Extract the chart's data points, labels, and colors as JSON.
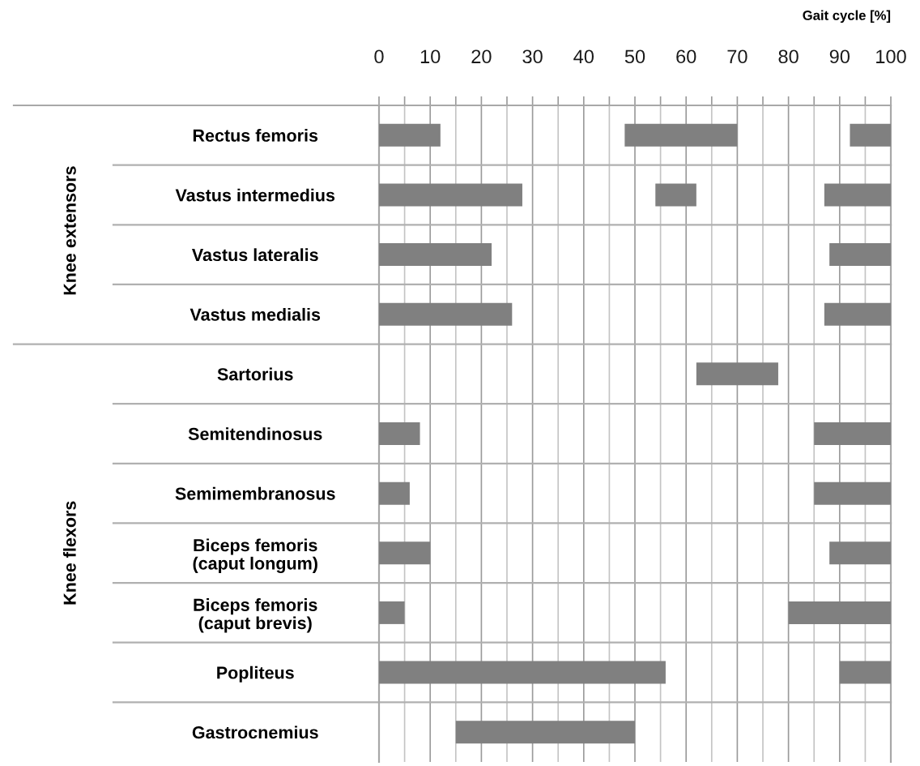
{
  "chart_data": {
    "type": "bar",
    "orientation": "horizontal",
    "xlabel": "Gait cycle [%]",
    "categories": [
      "Rectus femoris",
      "Vastus intermedius",
      "Vastus lateralis",
      "Vastus medialis",
      "Sartorius",
      "Semitendinosus",
      "Semimembranosus",
      "Biceps femoris\n(caput longum)",
      "Biceps femoris\n(caput brevis)",
      "Popliteus",
      "Gastrocnemius"
    ],
    "series": [
      {
        "color": "#808080",
        "base": [
          0,
          0,
          0,
          0,
          null,
          0,
          0,
          0,
          0,
          0,
          15
        ],
        "values": [
          12,
          28,
          22,
          26,
          null,
          8,
          6,
          10,
          5,
          56,
          35
        ]
      },
      {
        "color": "#808080",
        "base": [
          48,
          54,
          null,
          null,
          62,
          null,
          null,
          null,
          null,
          null,
          null
        ],
        "values": [
          22,
          8,
          null,
          null,
          16,
          null,
          null,
          null,
          null,
          null,
          null
        ]
      },
      {
        "color": "#808080",
        "base": [
          92,
          87,
          88,
          87,
          null,
          85,
          85,
          88,
          80,
          90,
          null
        ],
        "values": [
          8,
          13,
          12,
          13,
          null,
          15,
          15,
          12,
          20,
          10,
          null
        ]
      }
    ],
    "xlim": [
      0,
      100
    ],
    "xticks": [
      0,
      {
        "value": 5,
        "label": null
      },
      10,
      {
        "value": 15,
        "label": null
      },
      20,
      {
        "value": 25,
        "label": null
      },
      30,
      {
        "value": 35,
        "label": null
      },
      40,
      {
        "value": 45,
        "label": null
      },
      50,
      {
        "value": 55,
        "label": null
      },
      60,
      {
        "value": 65,
        "label": null
      },
      70,
      {
        "value": 75,
        "label": null
      },
      80,
      {
        "value": 85,
        "label": null
      },
      90,
      {
        "value": 95,
        "label": null
      },
      100
    ],
    "grid": true,
    "annotations": [
      "Knee extensors",
      "Knee flexors"
    ]
  }
}
